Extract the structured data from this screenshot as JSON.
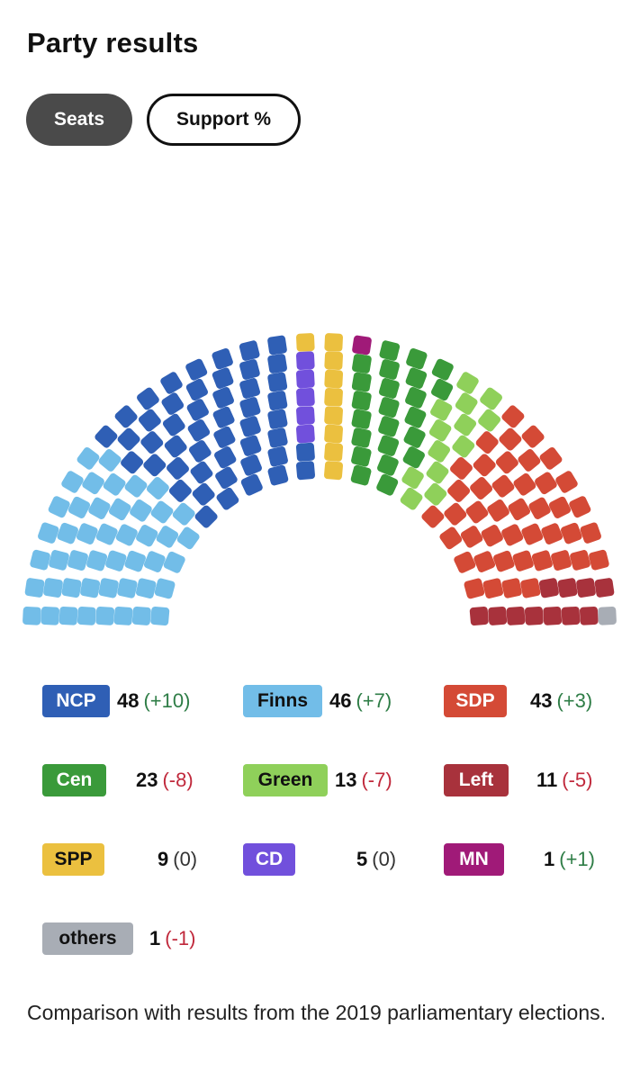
{
  "title": "Party results",
  "toggles": {
    "seats": "Seats",
    "support": "Support %",
    "active": "seats"
  },
  "chart_data": {
    "type": "parliament",
    "total_seats": 200,
    "parties": [
      {
        "id": "ncp",
        "label": "NCP",
        "seats": 48,
        "change": "(+10)",
        "trend": "pos",
        "color": "#2f5fb5"
      },
      {
        "id": "finns",
        "label": "Finns",
        "seats": 46,
        "change": "(+7)",
        "trend": "pos",
        "color": "#72bde8"
      },
      {
        "id": "sdp",
        "label": "SDP",
        "seats": 43,
        "change": "(+3)",
        "trend": "pos",
        "color": "#d44a36"
      },
      {
        "id": "cen",
        "label": "Cen",
        "seats": 23,
        "change": "(-8)",
        "trend": "neg",
        "color": "#3a9a3a"
      },
      {
        "id": "green",
        "label": "Green",
        "seats": 13,
        "change": "(-7)",
        "trend": "neg",
        "color": "#8fd05a"
      },
      {
        "id": "left",
        "label": "Left",
        "seats": 11,
        "change": "(-5)",
        "trend": "neg",
        "color": "#a8323c"
      },
      {
        "id": "spp",
        "label": "SPP",
        "seats": 9,
        "change": "(0)",
        "trend": "zero",
        "color": "#ebc03f"
      },
      {
        "id": "cd",
        "label": "CD",
        "seats": 5,
        "change": "(0)",
        "trend": "zero",
        "color": "#7150dc"
      },
      {
        "id": "mn",
        "label": "MN",
        "seats": 1,
        "change": "(+1)",
        "trend": "pos",
        "color": "#a01a78"
      },
      {
        "id": "others",
        "label": "others",
        "seats": 1,
        "change": "(-1)",
        "trend": "neg",
        "color": "#a8adb5"
      }
    ],
    "seat_order": [
      "finns",
      "ncp",
      "cd",
      "spp",
      "mn",
      "cen",
      "green",
      "sdp",
      "left",
      "others"
    ]
  },
  "footnote": "Comparison with results from the 2019 parliamentary elections."
}
